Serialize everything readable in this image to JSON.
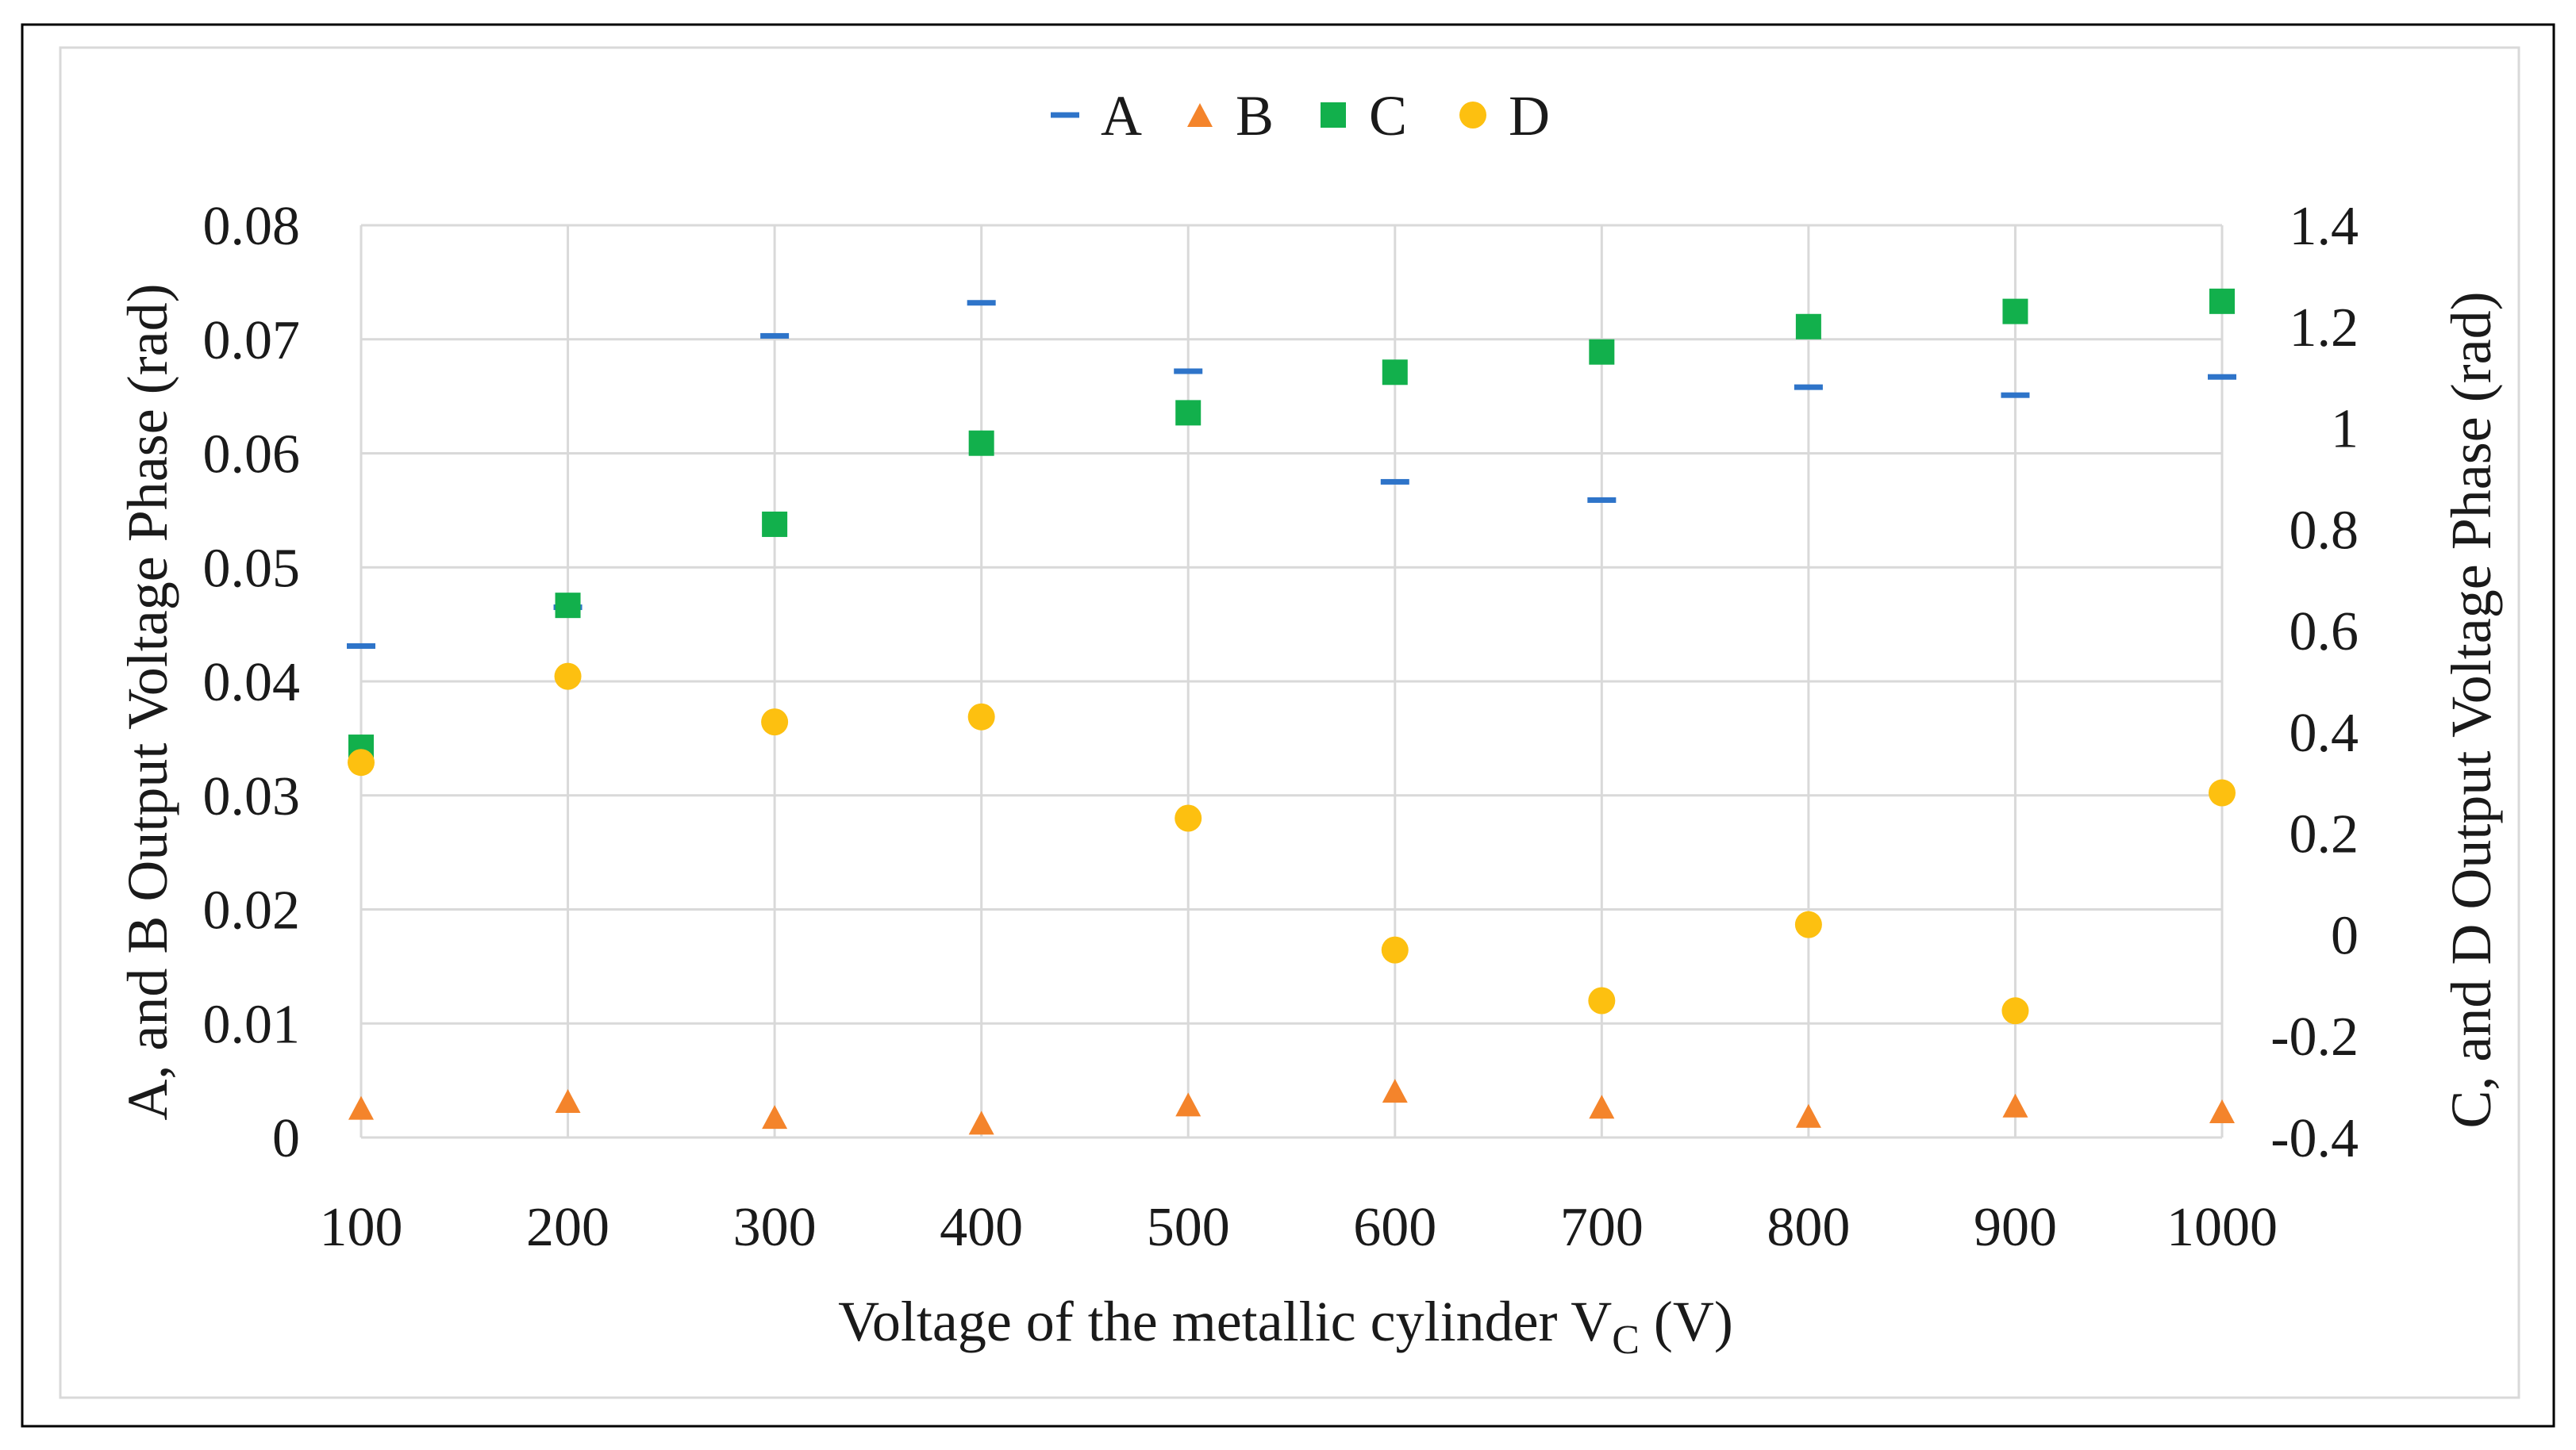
{
  "chart_data": {
    "type": "scatter",
    "title": "",
    "xlabel": "Voltage of the metallic cylinder V",
    "xlabel_subscript": "C",
    "xlabel_suffix": " (V)",
    "ylabel_left": "A, and B Output Voltage Phase (rad)",
    "ylabel_right": "C, and D Output Voltage Phase (rad)",
    "x": [
      100,
      200,
      300,
      400,
      500,
      600,
      700,
      800,
      900,
      1000
    ],
    "x_ticks": [
      "100",
      "200",
      "300",
      "400",
      "500",
      "600",
      "700",
      "800",
      "900",
      "1000"
    ],
    "ylim_left": [
      0,
      0.08
    ],
    "y_ticks_left": [
      "0",
      "0.01",
      "0.02",
      "0.03",
      "0.04",
      "0.05",
      "0.06",
      "0.07",
      "0.08"
    ],
    "ylim_right": [
      -0.4,
      1.4
    ],
    "y_ticks_right": [
      "-0.4",
      "-0.2",
      "0",
      "0.2",
      "0.4",
      "0.6",
      "0.8",
      "1",
      "1.2",
      "1.4"
    ],
    "grid": true,
    "legend_position": "top-center",
    "series": [
      {
        "name": "A",
        "axis": "left",
        "marker": "dash",
        "color": "#2e74c9",
        "values": [
          0.0431,
          0.0465,
          0.0703,
          0.0732,
          0.0672,
          0.0575,
          0.0559,
          0.0658,
          0.0651,
          0.0667
        ]
      },
      {
        "name": "B",
        "axis": "left",
        "marker": "triangle",
        "color": "#f4842b",
        "values": [
          0.0026,
          0.0032,
          0.0018,
          0.0013,
          0.0029,
          0.0041,
          0.0027,
          0.0019,
          0.0028,
          0.0023
        ]
      },
      {
        "name": "C",
        "axis": "right",
        "marker": "square",
        "color": "#12b04c",
        "values": [
          0.37,
          0.65,
          0.81,
          0.97,
          1.03,
          1.11,
          1.15,
          1.2,
          1.23,
          1.25
        ]
      },
      {
        "name": "D",
        "axis": "right",
        "marker": "circle",
        "color": "#fdc010",
        "values": [
          0.34,
          0.51,
          0.42,
          0.43,
          0.23,
          -0.03,
          -0.13,
          0.02,
          -0.15,
          0.28
        ]
      }
    ]
  }
}
